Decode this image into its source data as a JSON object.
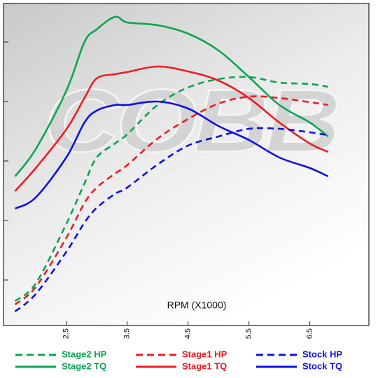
{
  "chart_data": {
    "type": "line",
    "watermark": "COBB",
    "x_label": "RPM (X1000)",
    "x": [
      1.66,
      2.0,
      2.5,
      2.8,
      3.0,
      3.3,
      3.5,
      4.0,
      4.5,
      5.0,
      5.5,
      6.0,
      6.5,
      6.8
    ],
    "xlim": [
      1.47,
      7.47
    ],
    "xticks": [
      2.5,
      3.5,
      4.5,
      5.5,
      6.5
    ],
    "ylim": [
      0,
      460
    ],
    "yticks": [
      65,
      150,
      235,
      320,
      405
    ],
    "series": [
      {
        "name": "Stage2 HP",
        "color": "#0aa550",
        "dashed": true,
        "values": [
          35,
          60,
          145,
          203,
          240,
          260,
          273,
          315,
          340,
          352,
          355,
          347,
          345,
          341
        ]
      },
      {
        "name": "Stage2 TQ",
        "color": "#0aa550",
        "dashed": false,
        "values": [
          213,
          252,
          335,
          405,
          423,
          441,
          433,
          429,
          417,
          393,
          355,
          315,
          290,
          270
        ]
      },
      {
        "name": "Stage1 HP",
        "color": "#ee1c24",
        "dashed": true,
        "values": [
          30,
          55,
          125,
          175,
          197,
          217,
          229,
          267,
          295,
          317,
          327,
          325,
          319,
          315
        ]
      },
      {
        "name": "Stage1 TQ",
        "color": "#ee1c24",
        "dashed": false,
        "values": [
          192,
          225,
          280,
          325,
          353,
          359,
          362,
          370,
          363,
          350,
          325,
          290,
          260,
          248
        ]
      },
      {
        "name": "Stock HP",
        "color": "#1010e6",
        "dashed": true,
        "values": [
          20,
          45,
          105,
          147,
          168,
          188,
          197,
          230,
          257,
          270,
          281,
          281,
          276,
          272
        ]
      },
      {
        "name": "Stock TQ",
        "color": "#1010e6",
        "dashed": false,
        "values": [
          167,
          183,
          240,
          290,
          307,
          315,
          315,
          320,
          310,
          285,
          265,
          240,
          225,
          213
        ]
      }
    ]
  }
}
